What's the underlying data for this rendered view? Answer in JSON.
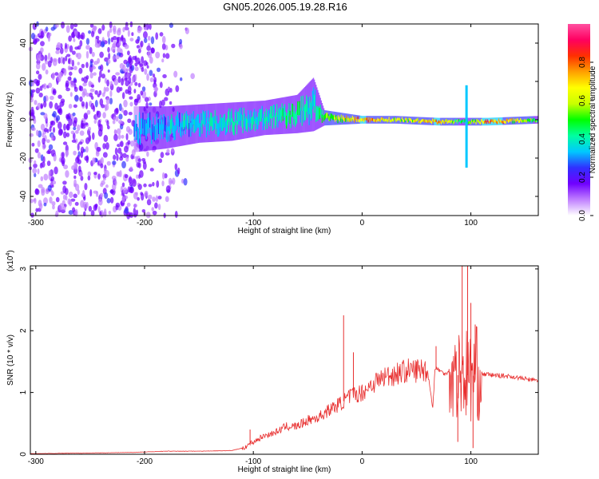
{
  "figure": {
    "title": "GN05.2026.005.19.28.R16"
  },
  "chart_data": [
    {
      "type": "heatmap",
      "panel": "top",
      "xlabel": "Height of straight line (km)",
      "ylabel": "Frequency (Hz)",
      "xlim": [
        -305,
        162
      ],
      "ylim": [
        -50,
        50
      ],
      "xticks": [
        -300,
        -200,
        -100,
        0,
        100
      ],
      "yticks": [
        -40,
        -20,
        0,
        20,
        40
      ],
      "colorbar": {
        "label": "Normalized spectral amplitude",
        "range": [
          0,
          1
        ],
        "ticks": [
          0.0,
          0.2,
          0.4,
          0.6,
          0.8
        ],
        "colormap": [
          "#ffffff",
          "#c080ff",
          "#7000ff",
          "#3030ff",
          "#00c8ff",
          "#00ffa0",
          "#00ff00",
          "#c8ff00",
          "#ffff00",
          "#ffa000",
          "#ff3000",
          "#ff0060",
          "#ff50a0"
        ]
      },
      "noise_region": {
        "x_range": [
          -305,
          -210
        ],
        "freq_spread": 50,
        "amplitude": 0.2
      },
      "ridge": [
        {
          "x": -210,
          "f": -5,
          "spread": 12,
          "amp": 0.35
        },
        {
          "x": -180,
          "f": -4,
          "spread": 11,
          "amp": 0.4
        },
        {
          "x": -150,
          "f": -2,
          "spread": 10,
          "amp": 0.42
        },
        {
          "x": -120,
          "f": -1,
          "spread": 10,
          "amp": 0.45
        },
        {
          "x": -90,
          "f": 1,
          "spread": 9,
          "amp": 0.45
        },
        {
          "x": -60,
          "f": 3,
          "spread": 10,
          "amp": 0.5
        },
        {
          "x": -45,
          "f": 8,
          "spread": 14,
          "amp": 0.45
        },
        {
          "x": -35,
          "f": 1,
          "spread": 4,
          "amp": 0.6
        },
        {
          "x": 0,
          "f": 0,
          "spread": 2,
          "amp": 0.85
        },
        {
          "x": 30,
          "f": 0,
          "spread": 2,
          "amp": 0.7
        },
        {
          "x": 70,
          "f": -1,
          "spread": 2,
          "amp": 0.85
        },
        {
          "x": 95,
          "f": -1,
          "spread": 2,
          "amp": 0.5
        },
        {
          "x": 115,
          "f": -1,
          "spread": 2,
          "amp": 0.95
        },
        {
          "x": 162,
          "f": 0,
          "spread": 2,
          "amp": 0.55
        }
      ],
      "spikes": [
        {
          "x": 96,
          "f_min": -25,
          "f_max": 18
        }
      ]
    },
    {
      "type": "line",
      "panel": "bottom",
      "xlabel": "Height of straight line (km)",
      "ylabel": "SNR (10 * v/v)",
      "y_multiplier_label": "(x10",
      "y_multiplier_exponent": "4",
      "xlim": [
        -305,
        162
      ],
      "ylim": [
        0,
        3.05
      ],
      "xticks": [
        -300,
        -200,
        -100,
        0,
        100
      ],
      "yticks": [
        0,
        1,
        2,
        3
      ],
      "line_color": "#e83030",
      "series": [
        {
          "x": [
            -305,
            -250,
            -210,
            -180,
            -150,
            -120,
            -110,
            -100,
            -90,
            -80,
            -70,
            -60,
            -50,
            -40,
            -30,
            -20,
            -10,
            0,
            10,
            20,
            30,
            40,
            50,
            60,
            65,
            67,
            70,
            75,
            80,
            85,
            90,
            95,
            100,
            105,
            110,
            120,
            130,
            140,
            150,
            162
          ],
          "y": [
            0.01,
            0.02,
            0.03,
            0.05,
            0.05,
            0.06,
            0.1,
            0.2,
            0.3,
            0.35,
            0.45,
            0.45,
            0.55,
            0.6,
            0.72,
            0.82,
            0.95,
            1.0,
            1.15,
            1.25,
            1.3,
            1.35,
            1.36,
            1.37,
            0.75,
            1.38,
            1.38,
            1.3,
            1.35,
            1.25,
            1.3,
            1.3,
            1.25,
            1.3,
            1.3,
            1.28,
            1.27,
            1.25,
            1.22,
            1.19
          ]
        }
      ],
      "spikes": [
        {
          "x": -103,
          "y": 0.4
        },
        {
          "x": -17,
          "y": 2.25
        },
        {
          "x": -8,
          "y": 1.65
        },
        {
          "x": 68,
          "y": 1.75
        },
        {
          "x": 92,
          "y": 3.05
        },
        {
          "x": 97,
          "y": 3.05
        },
        {
          "x": 100,
          "y": 2.45
        },
        {
          "x": 104,
          "y": 2.1
        },
        {
          "x": 88,
          "y": 0.2
        },
        {
          "x": 102,
          "y": 0.1
        }
      ]
    }
  ]
}
